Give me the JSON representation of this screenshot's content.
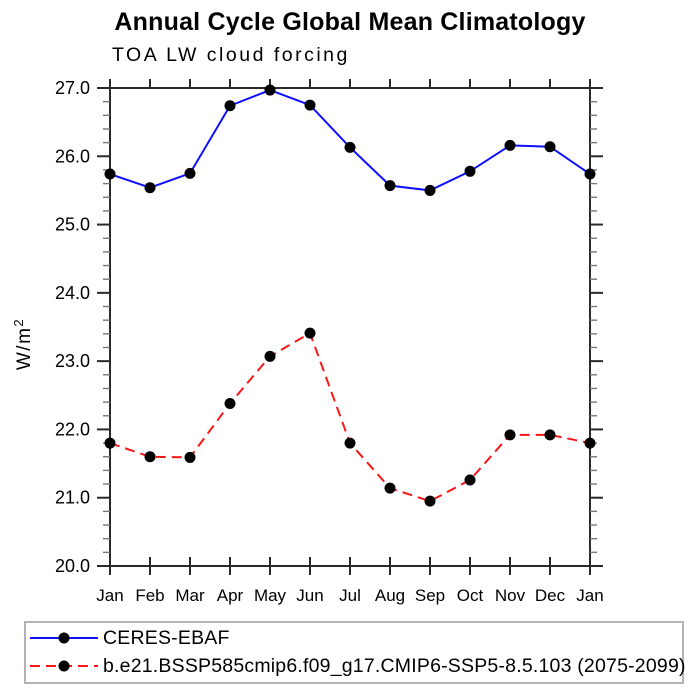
{
  "chart_data": {
    "type": "line",
    "title": "Annual Cycle Global Mean Climatology",
    "subtitle": "TOA LW cloud forcing",
    "categories": [
      "Jan",
      "Feb",
      "Mar",
      "Apr",
      "May",
      "Jun",
      "Jul",
      "Aug",
      "Sep",
      "Oct",
      "Nov",
      "Dec",
      "Jan"
    ],
    "xlabel": "",
    "ylabel": "W/m²",
    "ylim": [
      20.0,
      27.0
    ],
    "ytick_interval_major": 1.0,
    "ytick_interval_minor": 0.2,
    "ytick_labels": [
      "20.0",
      "21.0",
      "22.0",
      "23.0",
      "24.0",
      "25.0",
      "26.0",
      "27.0"
    ],
    "grid": false,
    "legend_position": "below-axis-left",
    "series": [
      {
        "name": "CERES-EBAF",
        "line_color": "#0f0fff",
        "line_style": "solid",
        "marker": "filled-circle",
        "marker_color": "#000000",
        "values": [
          25.74,
          25.54,
          25.75,
          26.74,
          26.97,
          26.75,
          26.13,
          25.57,
          25.5,
          25.78,
          26.16,
          26.14,
          25.74
        ]
      },
      {
        "name": "b.e21.BSSP585cmip6.f09_g17.CMIP6-SSP5-8.5.103 (2075-2099)",
        "line_color": "#f51616",
        "line_style": "dashed",
        "marker": "filled-circle",
        "marker_color": "#000000",
        "values": [
          21.8,
          21.6,
          21.59,
          22.38,
          23.07,
          23.41,
          21.8,
          21.14,
          20.95,
          21.26,
          21.92,
          21.92,
          21.8
        ]
      }
    ]
  },
  "colors": {
    "background": "#ffffff",
    "axis": "#2a2a2a",
    "minor_tick": "#777777",
    "text": "#000000",
    "legend_border": "#b3b3b3"
  }
}
